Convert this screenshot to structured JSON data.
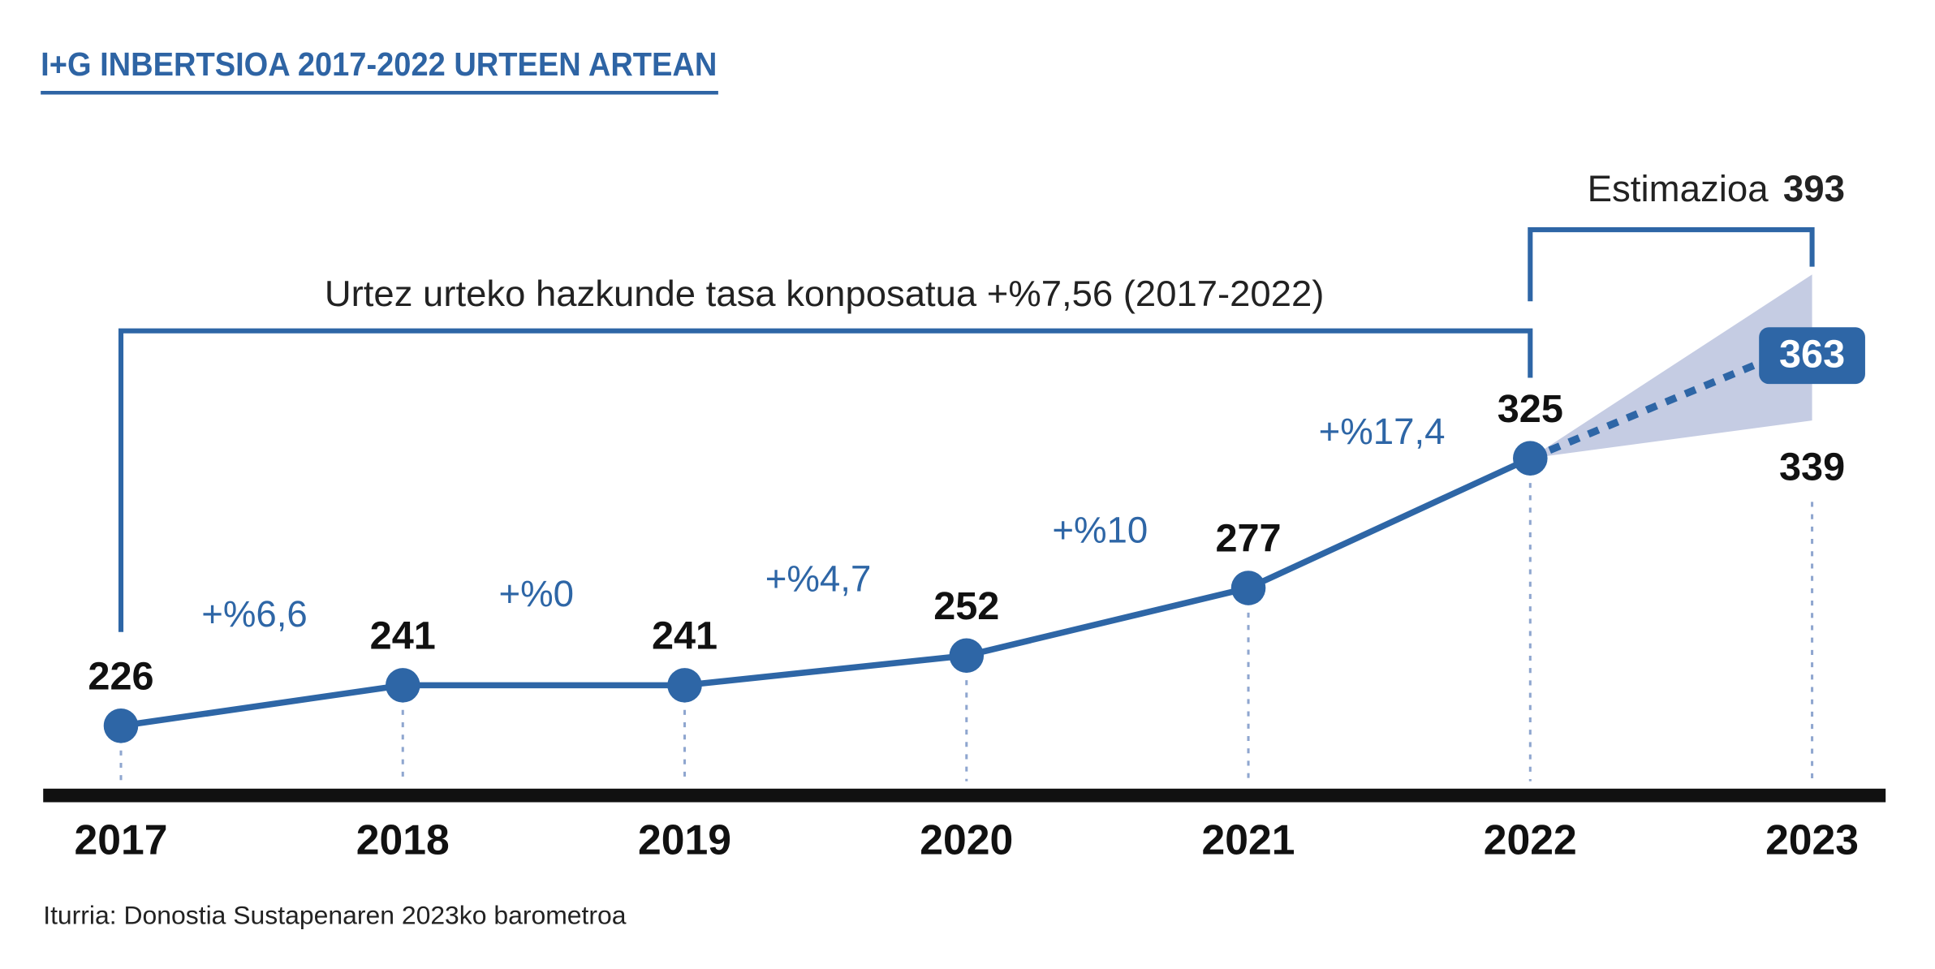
{
  "chart_data": {
    "type": "line",
    "title": "I+G INBERTSIOA 2017-2022 URTEEN ARTEAN",
    "categories": [
      "2017",
      "2018",
      "2019",
      "2020",
      "2021",
      "2022",
      "2023"
    ],
    "values": [
      226,
      241,
      241,
      252,
      277,
      325,
      null
    ],
    "color": "#2e66a6",
    "ylim": [
      200,
      400
    ],
    "growth_labels": [
      "+%6,6",
      "+%0",
      "+%4,7",
      "+%10",
      "+%17,4"
    ],
    "cagr_label": "Urtez urteko hazkunde tasa konposatua +%7,56 (2017-2022)",
    "estimate": {
      "label": "Estimazioa",
      "value": 363,
      "low": 339,
      "high": 393,
      "color": "#c5cce3"
    },
    "source": "Iturria: Donostia Sustapenaren 2023ko barometroa"
  }
}
